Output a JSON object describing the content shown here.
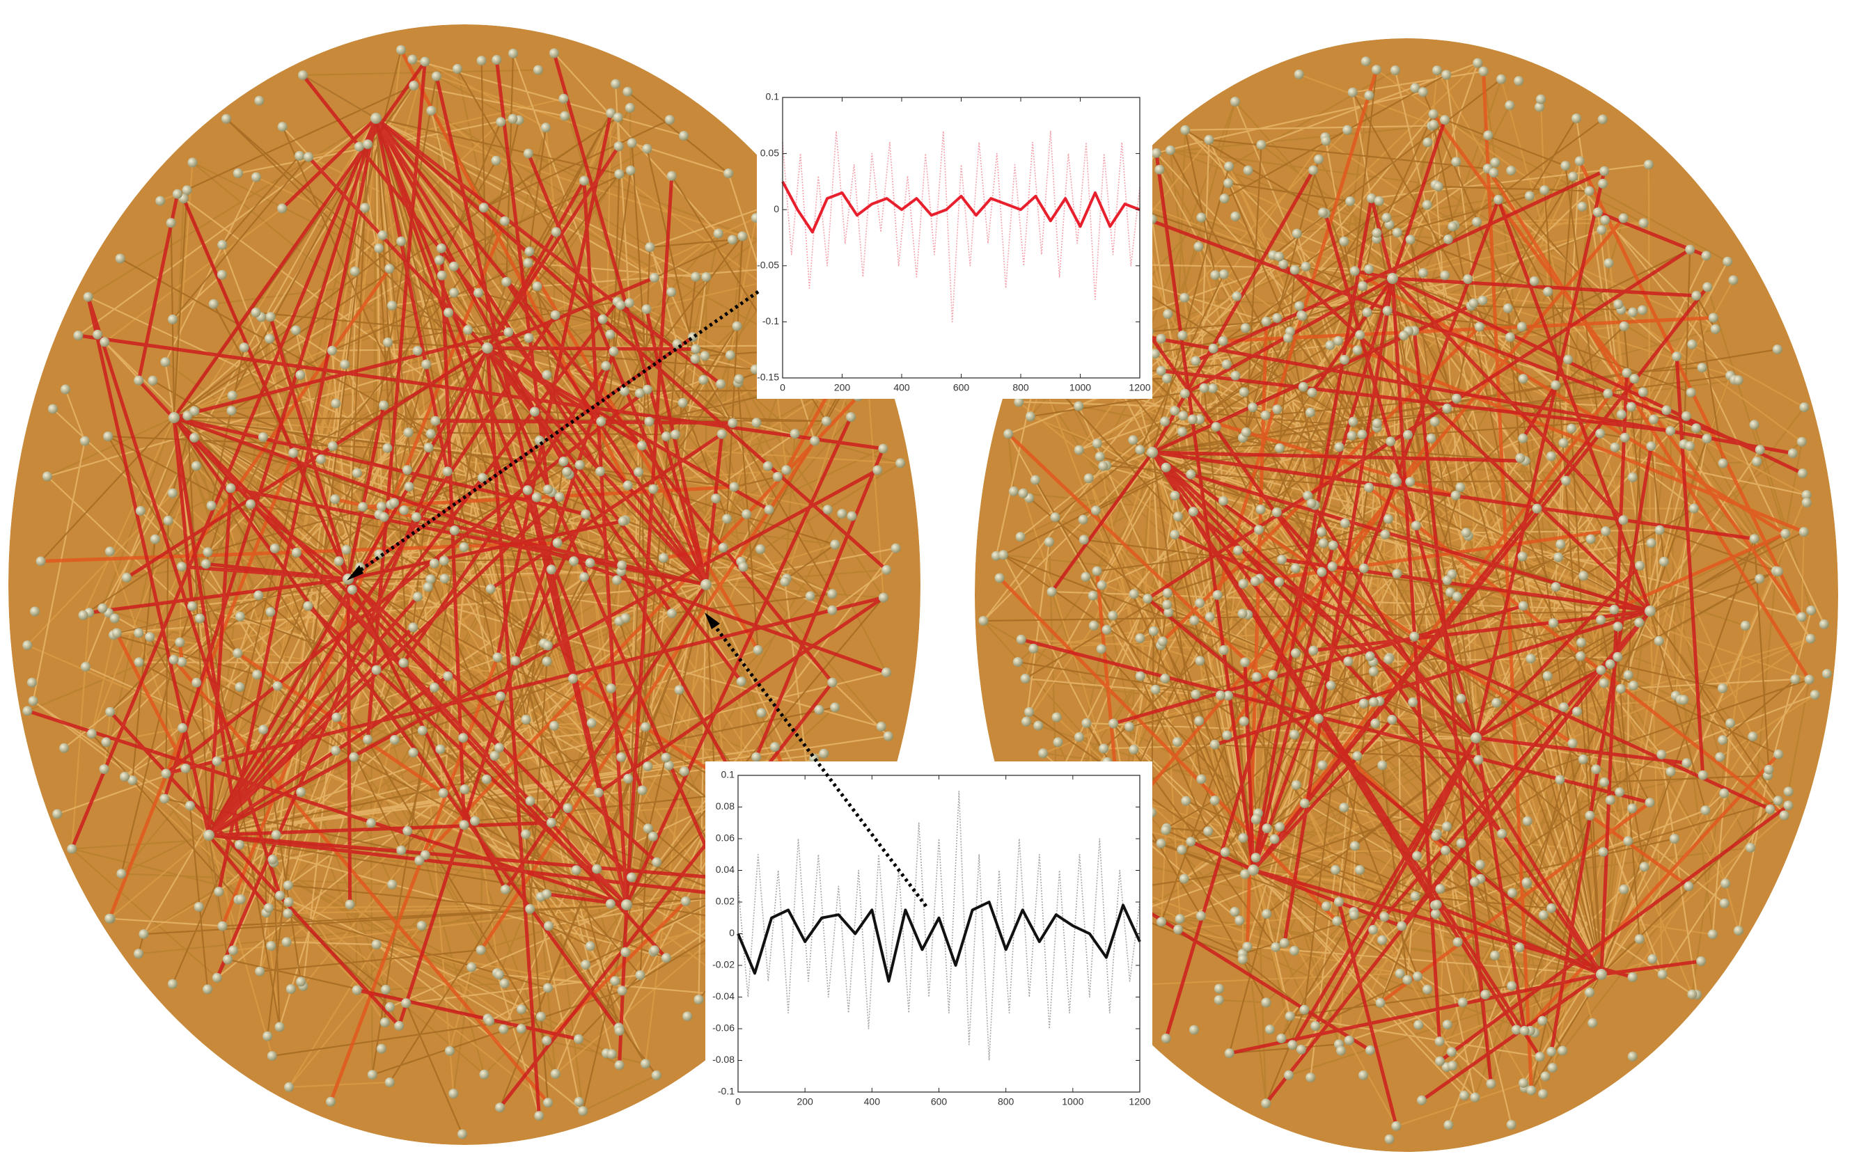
{
  "chart_data": [
    {
      "type": "line",
      "xlim": [
        0,
        1200
      ],
      "xticks": [
        0,
        200,
        400,
        600,
        800,
        1000,
        1200
      ],
      "ylim": [
        -0.15,
        0.1
      ],
      "yticks": [
        -0.15,
        -0.1,
        -0.05,
        0,
        0.05,
        0.1
      ],
      "series": [
        {
          "color": "#f4a3ad",
          "line_style": "dotted",
          "x": [
            0,
            30,
            60,
            90,
            120,
            150,
            180,
            210,
            240,
            270,
            300,
            330,
            360,
            390,
            420,
            450,
            480,
            510,
            540,
            570,
            600,
            630,
            660,
            690,
            720,
            750,
            780,
            810,
            840,
            870,
            900,
            930,
            960,
            990,
            1020,
            1050,
            1080,
            1110,
            1140,
            1170,
            1200
          ],
          "values": [
            0.06,
            -0.04,
            0.05,
            -0.07,
            0.03,
            -0.05,
            0.07,
            -0.03,
            0.04,
            -0.06,
            0.05,
            -0.02,
            0.06,
            -0.05,
            0.03,
            -0.06,
            0.05,
            -0.04,
            0.07,
            -0.1,
            0.04,
            -0.05,
            0.06,
            -0.03,
            0.05,
            -0.07,
            0.04,
            -0.05,
            0.06,
            -0.04,
            0.07,
            -0.06,
            0.05,
            -0.03,
            0.06,
            -0.08,
            0.05,
            -0.04,
            0.06,
            -0.05,
            0.02
          ]
        },
        {
          "color": "#e8202e",
          "line_style": "solid",
          "x": [
            0,
            50,
            100,
            150,
            200,
            250,
            300,
            350,
            400,
            450,
            500,
            550,
            600,
            650,
            700,
            750,
            800,
            850,
            900,
            950,
            1000,
            1050,
            1100,
            1150,
            1200
          ],
          "values": [
            0.025,
            0.0,
            -0.02,
            0.01,
            0.015,
            -0.005,
            0.005,
            0.01,
            0.0,
            0.01,
            -0.005,
            0.0,
            0.012,
            -0.005,
            0.01,
            0.005,
            0.0,
            0.012,
            -0.01,
            0.01,
            -0.015,
            0.015,
            -0.015,
            0.005,
            0.0
          ]
        }
      ]
    },
    {
      "type": "line",
      "xlim": [
        0,
        1200
      ],
      "xticks": [
        0,
        200,
        400,
        600,
        800,
        1000,
        1200
      ],
      "ylim": [
        -0.1,
        0.1
      ],
      "yticks": [
        -0.1,
        -0.08,
        -0.06,
        -0.04,
        -0.02,
        0,
        0.02,
        0.04,
        0.06,
        0.08,
        0.1
      ],
      "series": [
        {
          "color": "#a8a8a8",
          "line_style": "dotted",
          "x": [
            0,
            30,
            60,
            90,
            120,
            150,
            180,
            210,
            240,
            270,
            300,
            330,
            360,
            390,
            420,
            450,
            480,
            510,
            540,
            570,
            600,
            630,
            660,
            690,
            720,
            750,
            780,
            810,
            840,
            870,
            900,
            930,
            960,
            990,
            1020,
            1050,
            1080,
            1110,
            1140,
            1170,
            1200
          ],
          "values": [
            0.03,
            -0.04,
            0.05,
            -0.03,
            0.04,
            -0.05,
            0.06,
            -0.03,
            0.05,
            -0.04,
            0.03,
            -0.05,
            0.04,
            -0.06,
            0.05,
            -0.03,
            0.04,
            -0.05,
            0.07,
            -0.04,
            0.06,
            -0.05,
            0.09,
            -0.07,
            0.05,
            -0.08,
            0.04,
            -0.05,
            0.06,
            -0.04,
            0.05,
            -0.06,
            0.04,
            -0.05,
            0.05,
            -0.04,
            0.06,
            -0.05,
            0.04,
            -0.03,
            0.02
          ]
        },
        {
          "color": "#111111",
          "line_style": "solid",
          "x": [
            0,
            50,
            100,
            150,
            200,
            250,
            300,
            350,
            400,
            450,
            500,
            550,
            600,
            650,
            700,
            750,
            800,
            850,
            900,
            950,
            1000,
            1050,
            1100,
            1150,
            1200
          ],
          "values": [
            0.0,
            -0.025,
            0.01,
            0.015,
            -0.005,
            0.01,
            0.012,
            0.0,
            0.015,
            -0.03,
            0.015,
            -0.01,
            0.01,
            -0.02,
            0.015,
            0.02,
            -0.01,
            0.015,
            -0.005,
            0.012,
            0.005,
            0.0,
            -0.015,
            0.018,
            -0.005
          ]
        }
      ]
    }
  ]
}
